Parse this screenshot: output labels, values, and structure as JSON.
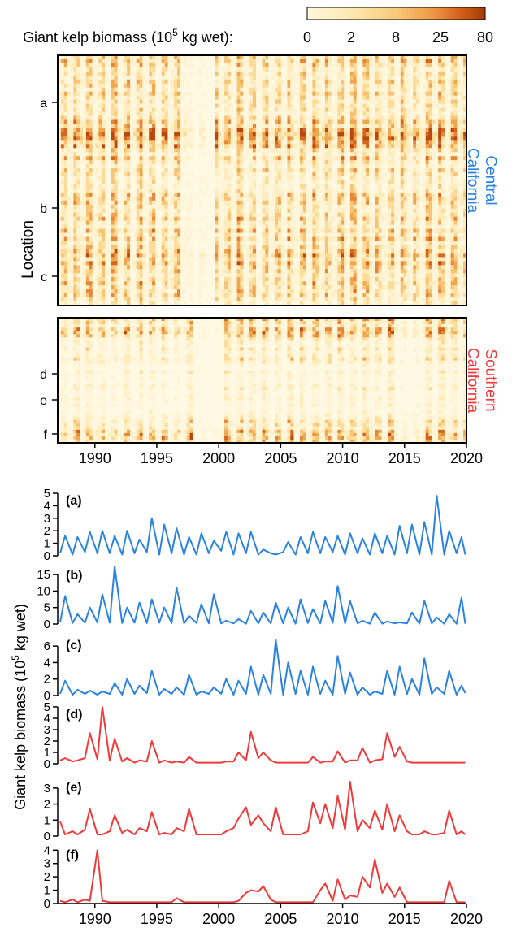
{
  "colorbar": {
    "title": "Giant kelp biomass (10",
    "title_sup": "5",
    "title_tail": " kg wet):",
    "ticks": [
      "0",
      "2",
      "8",
      "25",
      "80"
    ],
    "colors": [
      "#fff7dc",
      "#fde9b0",
      "#f8c97a",
      "#ef9a45",
      "#d9631d",
      "#a53a08"
    ]
  },
  "heatmaps": {
    "central": {
      "region_line1": "Central",
      "region_line2": "California",
      "color": "#2b83e0",
      "markers": [
        "a",
        "b",
        "c"
      ]
    },
    "southern": {
      "region_line1": "Southern",
      "region_line2": "California",
      "color": "#ee3a3a",
      "markers": [
        "d",
        "e",
        "f"
      ]
    },
    "y_label": "Location",
    "x_ticks": [
      "1990",
      "1995",
      "2000",
      "2005",
      "2010",
      "2015",
      "2020"
    ]
  },
  "timeseries": {
    "y_label_pre": "Giant kelp biomass (10",
    "y_label_sup": "5",
    "y_label_post": " kg wet)",
    "x_ticks": [
      "1990",
      "1995",
      "2000",
      "2005",
      "2010",
      "2015",
      "2020"
    ]
  },
  "chart_data": [
    {
      "type": "heatmap",
      "region": "Central California",
      "x_range": [
        1987,
        2020
      ],
      "color_scale": [
        0,
        2,
        8,
        25,
        80
      ],
      "labeled_locations": [
        "a",
        "b",
        "c"
      ]
    },
    {
      "type": "heatmap",
      "region": "Southern California",
      "x_range": [
        1987,
        2020
      ],
      "color_scale": [
        0,
        2,
        8,
        25,
        80
      ],
      "labeled_locations": [
        "d",
        "e",
        "f"
      ]
    },
    {
      "type": "line",
      "panel": "(a)",
      "color": "#2b83e0",
      "x_range": [
        1987,
        2020
      ],
      "ylim": [
        0,
        5
      ],
      "yticks": [
        0,
        1,
        2,
        3,
        4,
        5
      ],
      "x": [
        1987.2,
        1987.6,
        1988.2,
        1988.6,
        1989.2,
        1989.6,
        1990.2,
        1990.6,
        1991.2,
        1991.6,
        1992.2,
        1992.6,
        1993.2,
        1993.6,
        1994.2,
        1994.6,
        1995.2,
        1995.6,
        1996.2,
        1996.6,
        1997.2,
        1997.6,
        1998.2,
        1998.6,
        1999.2,
        1999.6,
        2000.2,
        2000.6,
        2001.2,
        2001.6,
        2002.2,
        2002.6,
        2003.2,
        2003.6,
        2004.2,
        2004.6,
        2005.2,
        2005.6,
        2006.2,
        2006.6,
        2007.2,
        2007.6,
        2008.2,
        2008.6,
        2009.2,
        2009.6,
        2010.2,
        2010.6,
        2011.2,
        2011.6,
        2012.2,
        2012.6,
        2013.2,
        2013.6,
        2014.2,
        2014.6,
        2015.2,
        2015.6,
        2016.2,
        2016.6,
        2017.2,
        2017.6,
        2018.2,
        2018.6,
        2019.2,
        2019.6,
        2019.9
      ],
      "y": [
        0.2,
        1.6,
        0.1,
        1.5,
        0.3,
        1.9,
        0.2,
        2.0,
        0.2,
        1.6,
        0.1,
        2.0,
        0.2,
        1.3,
        0.3,
        3.0,
        0.1,
        2.5,
        0.2,
        2.2,
        0.1,
        1.5,
        0.1,
        1.8,
        0.2,
        1.2,
        0.4,
        1.9,
        0.1,
        1.8,
        0.2,
        1.9,
        0.1,
        0.5,
        0.2,
        0.1,
        0.3,
        1.1,
        0.1,
        1.5,
        0.2,
        1.9,
        0.2,
        1.5,
        0.3,
        1.6,
        0.1,
        1.8,
        0.2,
        1.4,
        0.1,
        1.8,
        0.2,
        1.6,
        0.1,
        2.4,
        0.2,
        2.5,
        0.1,
        2.7,
        0.1,
        4.8,
        0.1,
        2.0,
        0.2,
        1.5,
        0.1
      ]
    },
    {
      "type": "line",
      "panel": "(b)",
      "color": "#2b83e0",
      "x_range": [
        1987,
        2020
      ],
      "ylim": [
        0,
        17
      ],
      "yticks": [
        0,
        5,
        10,
        15
      ],
      "x": [
        1987.2,
        1987.6,
        1988.2,
        1988.6,
        1989.2,
        1989.6,
        1990.2,
        1990.6,
        1991.2,
        1991.6,
        1992.2,
        1992.6,
        1993.2,
        1993.6,
        1994.2,
        1994.6,
        1995.2,
        1995.6,
        1996.2,
        1996.6,
        1997.2,
        1997.6,
        1998.2,
        1998.6,
        1999.2,
        1999.6,
        2000.2,
        2000.6,
        2001.2,
        2001.6,
        2002.2,
        2002.6,
        2003.2,
        2003.6,
        2004.2,
        2004.6,
        2005.2,
        2005.6,
        2006.2,
        2006.6,
        2007.2,
        2007.6,
        2008.2,
        2008.6,
        2009.2,
        2009.6,
        2010.2,
        2010.6,
        2011.2,
        2011.6,
        2012.2,
        2012.6,
        2013.2,
        2013.6,
        2014.2,
        2014.6,
        2015.2,
        2015.6,
        2016.2,
        2016.6,
        2017.2,
        2017.6,
        2018.2,
        2018.6,
        2019.2,
        2019.6,
        2019.9
      ],
      "y": [
        0.5,
        8.5,
        0.3,
        3.0,
        0.4,
        5.0,
        0.5,
        9.0,
        0.4,
        17.5,
        0.3,
        5.0,
        0.4,
        6.5,
        0.3,
        7.5,
        0.4,
        5.0,
        0.3,
        11.0,
        0.2,
        2.5,
        0.3,
        6.0,
        0.2,
        9.0,
        0.2,
        1.0,
        0.2,
        1.5,
        0.1,
        4.0,
        0.2,
        3.5,
        0.2,
        6.5,
        0.2,
        5.0,
        0.1,
        7.5,
        0.3,
        4.5,
        0.2,
        7.0,
        0.4,
        11.5,
        0.2,
        7.0,
        0.2,
        1.0,
        0.1,
        3.5,
        0.1,
        0.8,
        0.2,
        0.5,
        0.2,
        3.5,
        0.1,
        7.0,
        0.2,
        2.0,
        0.1,
        3.0,
        0.1,
        8.0,
        0.1
      ]
    },
    {
      "type": "line",
      "panel": "(c)",
      "color": "#2b83e0",
      "x_range": [
        1987,
        2020
      ],
      "ylim": [
        0,
        7
      ],
      "yticks": [
        0,
        2,
        4,
        6
      ],
      "x": [
        1987.2,
        1987.6,
        1988.2,
        1988.6,
        1989.2,
        1989.6,
        1990.2,
        1990.6,
        1991.2,
        1991.6,
        1992.2,
        1992.6,
        1993.2,
        1993.6,
        1994.2,
        1994.6,
        1995.2,
        1995.6,
        1996.2,
        1996.6,
        1997.2,
        1997.6,
        1998.2,
        1998.6,
        1999.2,
        1999.6,
        2000.2,
        2000.6,
        2001.2,
        2001.6,
        2002.2,
        2002.6,
        2003.2,
        2003.6,
        2004.2,
        2004.6,
        2005.2,
        2005.6,
        2006.2,
        2006.6,
        2007.2,
        2007.6,
        2008.2,
        2008.6,
        2009.2,
        2009.6,
        2010.2,
        2010.6,
        2011.2,
        2011.6,
        2012.2,
        2012.6,
        2013.2,
        2013.6,
        2014.2,
        2014.6,
        2015.2,
        2015.6,
        2016.2,
        2016.6,
        2017.2,
        2017.6,
        2018.2,
        2018.6,
        2019.2,
        2019.6,
        2019.9
      ],
      "y": [
        0.2,
        1.8,
        0.1,
        0.7,
        0.2,
        0.6,
        0.1,
        0.5,
        0.2,
        1.5,
        0.1,
        2.0,
        0.2,
        1.2,
        0.3,
        3.0,
        0.1,
        0.8,
        0.2,
        1.0,
        0.1,
        2.5,
        0.1,
        0.5,
        0.2,
        1.0,
        0.2,
        2.0,
        0.1,
        1.8,
        0.2,
        3.5,
        0.1,
        2.5,
        0.2,
        6.8,
        0.1,
        4.0,
        0.2,
        3.0,
        0.1,
        3.5,
        0.2,
        1.8,
        0.1,
        4.8,
        0.2,
        2.8,
        0.1,
        1.0,
        0.1,
        0.5,
        0.2,
        3.0,
        0.1,
        3.5,
        0.2,
        2.0,
        0.1,
        4.5,
        0.2,
        1.0,
        0.2,
        3.0,
        0.1,
        1.2,
        0.3
      ]
    },
    {
      "type": "line",
      "panel": "(d)",
      "color": "#ee3a3a",
      "x_range": [
        1987,
        2020
      ],
      "ylim": [
        0,
        5
      ],
      "yticks": [
        0,
        1,
        2,
        3,
        4,
        5
      ],
      "x": [
        1987.2,
        1987.6,
        1988.2,
        1988.6,
        1989.2,
        1989.6,
        1990.2,
        1990.6,
        1991.2,
        1991.6,
        1992.2,
        1992.6,
        1993.2,
        1993.6,
        1994.2,
        1994.6,
        1995.2,
        1995.6,
        1996.2,
        1996.6,
        1997.2,
        1997.6,
        1998.2,
        1998.6,
        1999.2,
        1999.6,
        2000.2,
        2000.6,
        2001.2,
        2001.6,
        2002.2,
        2002.6,
        2003.2,
        2003.6,
        2004.2,
        2004.6,
        2005.2,
        2005.6,
        2006.2,
        2006.6,
        2007.2,
        2007.6,
        2008.2,
        2008.6,
        2009.2,
        2009.6,
        2010.2,
        2010.6,
        2011.2,
        2011.6,
        2012.2,
        2012.6,
        2013.2,
        2013.6,
        2014.2,
        2014.6,
        2015.2,
        2015.6,
        2016.2,
        2016.6,
        2017.2,
        2017.6,
        2018.2,
        2018.6,
        2019.2,
        2019.6,
        2019.9
      ],
      "y": [
        0.3,
        0.5,
        0.2,
        0.3,
        0.5,
        2.7,
        0.4,
        5.0,
        0.3,
        2.2,
        0.2,
        0.5,
        0.1,
        0.3,
        0.2,
        2.0,
        0.1,
        0.3,
        0.1,
        0.2,
        0.1,
        0.6,
        0.1,
        0.1,
        0.1,
        0.1,
        0.1,
        0.2,
        0.2,
        1.0,
        0.3,
        2.8,
        0.5,
        1.0,
        0.3,
        0.1,
        0.1,
        0.1,
        0.1,
        0.1,
        0.1,
        0.6,
        0.1,
        0.2,
        0.2,
        1.1,
        0.1,
        0.3,
        0.3,
        1.4,
        0.1,
        0.3,
        0.4,
        2.7,
        0.6,
        1.5,
        0.2,
        0.1,
        0.1,
        0.1,
        0.1,
        0.1,
        0.1,
        0.1,
        0.1,
        0.1,
        0.1
      ]
    },
    {
      "type": "line",
      "panel": "(e)",
      "color": "#ee3a3a",
      "x_range": [
        1987,
        2020
      ],
      "ylim": [
        0,
        3.5
      ],
      "yticks": [
        0,
        1,
        2,
        3
      ],
      "x": [
        1987.2,
        1987.6,
        1988.2,
        1988.6,
        1989.2,
        1989.6,
        1990.2,
        1990.6,
        1991.2,
        1991.6,
        1992.2,
        1992.6,
        1993.2,
        1993.6,
        1994.2,
        1994.6,
        1995.2,
        1995.6,
        1996.2,
        1996.6,
        1997.2,
        1997.6,
        1998.2,
        1998.6,
        1999.2,
        1999.6,
        2000.2,
        2000.6,
        2001.2,
        2001.6,
        2002.2,
        2002.6,
        2003.2,
        2003.6,
        2004.2,
        2004.6,
        2005.2,
        2005.6,
        2006.2,
        2006.6,
        2007.2,
        2007.6,
        2008.2,
        2008.6,
        2009.2,
        2009.6,
        2010.2,
        2010.6,
        2011.2,
        2011.6,
        2012.2,
        2012.6,
        2013.2,
        2013.6,
        2014.2,
        2014.6,
        2015.2,
        2015.6,
        2016.2,
        2016.6,
        2017.2,
        2017.6,
        2018.2,
        2018.6,
        2019.2,
        2019.6,
        2019.9
      ],
      "y": [
        0.9,
        0.1,
        0.3,
        0.1,
        0.4,
        1.7,
        0.1,
        0.1,
        0.3,
        1.3,
        0.2,
        0.4,
        0.1,
        0.5,
        0.3,
        1.5,
        0.1,
        0.2,
        0.1,
        0.5,
        0.3,
        1.7,
        0.1,
        0.1,
        0.1,
        0.1,
        0.1,
        0.3,
        0.5,
        1.1,
        1.8,
        0.7,
        1.3,
        0.8,
        0.3,
        1.8,
        0.1,
        0.1,
        0.1,
        0.1,
        0.3,
        2.1,
        0.8,
        2.0,
        0.5,
        2.5,
        0.4,
        3.4,
        0.3,
        1.0,
        0.5,
        1.6,
        0.4,
        2.0,
        0.3,
        1.3,
        0.3,
        0.1,
        0.1,
        0.3,
        0.1,
        0.1,
        0.2,
        1.6,
        0.1,
        0.3,
        0.1
      ]
    },
    {
      "type": "line",
      "panel": "(f)",
      "color": "#ee3a3a",
      "x_range": [
        1987,
        2020
      ],
      "ylim": [
        0,
        4.2
      ],
      "yticks": [
        0,
        1,
        2,
        3,
        4
      ],
      "x": [
        1987.2,
        1987.6,
        1988.2,
        1988.6,
        1989.2,
        1989.6,
        1990.2,
        1990.6,
        1991.2,
        1991.6,
        1992.2,
        1992.6,
        1993.2,
        1993.6,
        1994.2,
        1994.6,
        1995.2,
        1995.6,
        1996.2,
        1996.6,
        1997.2,
        1997.6,
        1998.2,
        1998.6,
        1999.2,
        1999.6,
        2000.2,
        2000.6,
        2001.2,
        2001.6,
        2002.2,
        2002.6,
        2003.2,
        2003.6,
        2004.2,
        2004.6,
        2005.2,
        2005.6,
        2006.2,
        2006.6,
        2007.2,
        2007.6,
        2008.2,
        2008.6,
        2009.2,
        2009.6,
        2010.2,
        2010.6,
        2011.2,
        2011.6,
        2012.2,
        2012.6,
        2013.2,
        2013.6,
        2014.2,
        2014.6,
        2015.2,
        2015.6,
        2016.2,
        2016.6,
        2017.2,
        2017.6,
        2018.2,
        2018.6,
        2019.2,
        2019.6,
        2019.9
      ],
      "y": [
        0.2,
        0.1,
        0.3,
        0.1,
        0.3,
        0.2,
        4.0,
        0.2,
        0.1,
        0.1,
        0.1,
        0.1,
        0.1,
        0.1,
        0.1,
        0.1,
        0.1,
        0.1,
        0.1,
        0.4,
        0.1,
        0.1,
        0.1,
        0.1,
        0.1,
        0.1,
        0.1,
        0.1,
        0.1,
        0.2,
        0.8,
        1.0,
        0.9,
        1.3,
        0.3,
        0.1,
        0.1,
        0.1,
        0.1,
        0.1,
        0.1,
        0.1,
        1.0,
        1.5,
        0.2,
        1.8,
        0.3,
        0.6,
        0.5,
        2.0,
        1.2,
        3.3,
        0.8,
        1.5,
        0.5,
        1.2,
        0.1,
        0.1,
        0.1,
        0.1,
        0.1,
        0.1,
        0.1,
        1.7,
        0.1,
        0.1,
        0.1
      ]
    }
  ]
}
